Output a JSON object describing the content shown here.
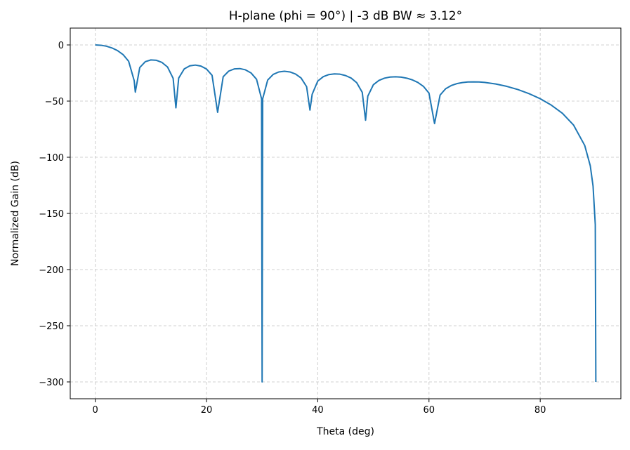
{
  "chart_data": {
    "type": "line",
    "title": "H-plane (phi = 90°)  |  -3 dB BW ≈ 3.12°",
    "xlabel": "Theta (deg)",
    "ylabel": "Normalized Gain (dB)",
    "xlim": [
      -4.5,
      94.5
    ],
    "ylim": [
      -315,
      15
    ],
    "xticks": [
      0,
      20,
      40,
      60,
      80
    ],
    "yticks": [
      0,
      -50,
      -100,
      -150,
      -200,
      -250,
      -300
    ],
    "xtick_labels": [
      "0",
      "20",
      "40",
      "60",
      "80"
    ],
    "ytick_labels": [
      "0",
      "−50",
      "−100",
      "−150",
      "−200",
      "−250",
      "−300"
    ],
    "grid": true,
    "grid_style": "dashed",
    "line_color": "#1f77b4",
    "series": [
      {
        "x": [
          0,
          1,
          2,
          3,
          4,
          5,
          6,
          7,
          7.2,
          8,
          9,
          10,
          11,
          12,
          13,
          14,
          14.5,
          15,
          16,
          17,
          18,
          19,
          20,
          21,
          22,
          23,
          24,
          25,
          26,
          27,
          28,
          29,
          29.9,
          30,
          30.1,
          31,
          32,
          33,
          34,
          35,
          36,
          37,
          38,
          38.6,
          39,
          40,
          41,
          42,
          43,
          44,
          45,
          46,
          47,
          48,
          48.6,
          49,
          50,
          51,
          52,
          53,
          54,
          55,
          56,
          57,
          58,
          59,
          60,
          61,
          62,
          63,
          64,
          65,
          66,
          67,
          68,
          69,
          70,
          72,
          74,
          76,
          78,
          80,
          82,
          84,
          86,
          88,
          89,
          89.5,
          89.9,
          90
        ],
        "y": [
          0,
          -0.28,
          -1.14,
          -2.67,
          -5.03,
          -8.6,
          -14.55,
          -31.8,
          -42,
          -20.15,
          -14.88,
          -13.36,
          -13.68,
          -15.61,
          -19.71,
          -29.7,
          -56,
          -29.5,
          -21.3,
          -18.56,
          -17.93,
          -18.84,
          -21.45,
          -27.06,
          -60,
          -28.3,
          -23.28,
          -21.35,
          -21.07,
          -22.16,
          -24.89,
          -30.6,
          -48,
          -300,
          -48,
          -31.27,
          -26.2,
          -24.07,
          -23.47,
          -24.04,
          -25.86,
          -29.4,
          -37.2,
          -58,
          -43.9,
          -32.2,
          -28.24,
          -26.4,
          -25.75,
          -26.05,
          -27.25,
          -29.5,
          -33.6,
          -42.2,
          -67,
          -45.6,
          -35.45,
          -31.6,
          -29.56,
          -28.6,
          -28.33,
          -28.68,
          -29.58,
          -31.1,
          -33.4,
          -36.9,
          -42.9,
          -70,
          -44.6,
          -38.97,
          -36.14,
          -34.46,
          -33.5,
          -33.0,
          -32.86,
          -33.0,
          -33.39,
          -34.77,
          -36.9,
          -39.75,
          -43.4,
          -47.9,
          -53.6,
          -60.9,
          -71.4,
          -89.5,
          -107.6,
          -125.7,
          -160,
          -300
        ]
      }
    ]
  }
}
